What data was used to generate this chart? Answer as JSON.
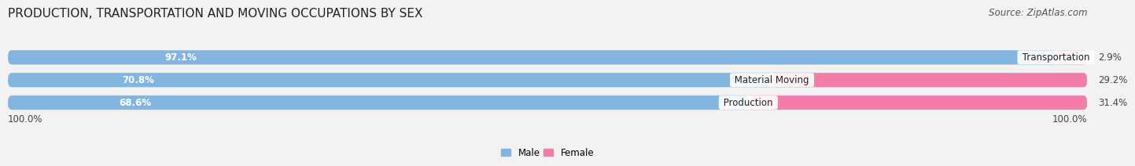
{
  "title": "PRODUCTION, TRANSPORTATION AND MOVING OCCUPATIONS BY SEX",
  "source": "Source: ZipAtlas.com",
  "categories": [
    "Transportation",
    "Material Moving",
    "Production"
  ],
  "male_values": [
    97.1,
    70.8,
    68.6
  ],
  "female_values": [
    2.9,
    29.2,
    31.4
  ],
  "male_color": "#82b5e0",
  "female_color": "#f47caa",
  "female_color_transport": "#f0aac0",
  "male_label": "Male",
  "female_label": "Female",
  "bg_color": "#f2f2f2",
  "bar_bg_color": "#e8e8e8",
  "row_bg_color": "#ffffff",
  "title_fontsize": 11,
  "source_fontsize": 8.5,
  "value_fontsize": 8.5,
  "cat_fontsize": 8.5,
  "tick_fontsize": 8.5,
  "x_left_label": "100.0%",
  "x_right_label": "100.0%"
}
